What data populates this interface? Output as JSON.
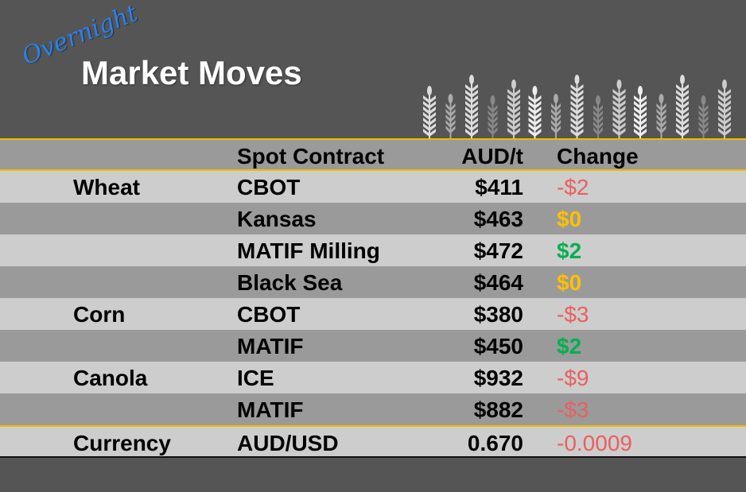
{
  "header": {
    "script_title": "Overnight",
    "title": "Market Moves",
    "decoration": "wheat-stalks-icon"
  },
  "columns": [
    "",
    "Spot Contract",
    "AUD/t",
    "Change"
  ],
  "rows": [
    {
      "commodity": "Wheat",
      "contract": "CBOT",
      "price": "$411",
      "change": "-$2",
      "trend": "neg"
    },
    {
      "commodity": "",
      "contract": "Kansas",
      "price": "$463",
      "change": "$0",
      "trend": "zero"
    },
    {
      "commodity": "",
      "contract": "MATIF Milling",
      "price": "$472",
      "change": "$2",
      "trend": "pos"
    },
    {
      "commodity": "",
      "contract": "Black Sea",
      "price": "$464",
      "change": "$0",
      "trend": "zero"
    },
    {
      "commodity": "Corn",
      "contract": "CBOT",
      "price": "$380",
      "change": "-$3",
      "trend": "neg"
    },
    {
      "commodity": "",
      "contract": "MATIF",
      "price": "$450",
      "change": "$2",
      "trend": "pos"
    },
    {
      "commodity": "Canola",
      "contract": "ICE",
      "price": "$932",
      "change": "-$9",
      "trend": "neg"
    },
    {
      "commodity": "",
      "contract": "MATIF",
      "price": "$882",
      "change": "-$3",
      "trend": "neg"
    },
    {
      "commodity": "Currency",
      "contract": "AUD/USD",
      "price": "0.670",
      "change": "-0.0009",
      "trend": "neg"
    }
  ],
  "colors": {
    "background": "#555555",
    "accent": "#f5b800",
    "negative": "#e8605e",
    "zero": "#ffc000",
    "positive": "#00b050",
    "script": "#2f80e8"
  }
}
